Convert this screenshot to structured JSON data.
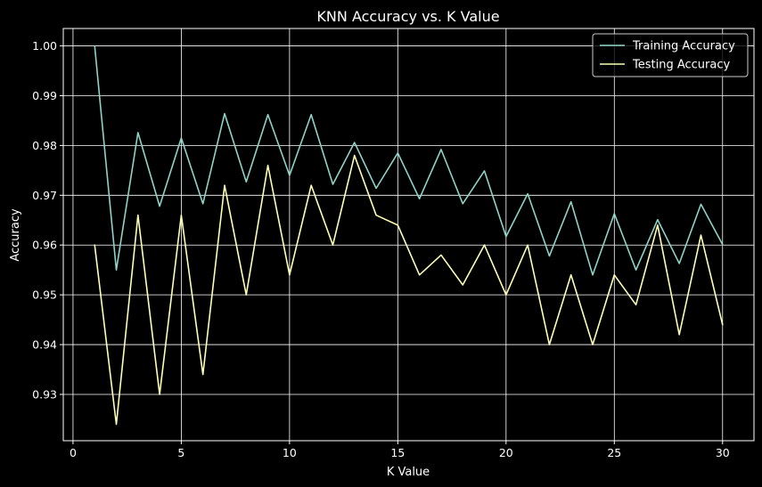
{
  "chart_data": {
    "type": "line",
    "title": "KNN Accuracy vs. K Value",
    "xlabel": "K Value",
    "ylabel": "Accuracy",
    "xlim": [
      -0.45,
      31.45
    ],
    "ylim": [
      0.9207,
      1.0035
    ],
    "xticks": [
      0,
      5,
      10,
      15,
      20,
      25,
      30
    ],
    "yticks": [
      0.93,
      0.94,
      0.95,
      0.96,
      0.97,
      0.98,
      0.99,
      1.0
    ],
    "xtick_labels": [
      "0",
      "5",
      "10",
      "15",
      "20",
      "25",
      "30"
    ],
    "ytick_labels": [
      "0.93",
      "0.94",
      "0.95",
      "0.96",
      "0.97",
      "0.98",
      "0.99",
      "1.00"
    ],
    "grid": true,
    "legend_position": "top-right",
    "x": [
      1,
      2,
      3,
      4,
      5,
      6,
      7,
      8,
      9,
      10,
      11,
      12,
      13,
      14,
      15,
      16,
      17,
      18,
      19,
      20,
      21,
      22,
      23,
      24,
      25,
      26,
      27,
      28,
      29,
      30
    ],
    "series": [
      {
        "name": "Training Accuracy",
        "color": "#8dd3c7",
        "values": [
          1.0,
          0.955,
          0.9826,
          0.9678,
          0.9815,
          0.9683,
          0.9864,
          0.9727,
          0.9862,
          0.974,
          0.9862,
          0.9722,
          0.9806,
          0.9714,
          0.9785,
          0.9693,
          0.9792,
          0.9683,
          0.9749,
          0.9617,
          0.9703,
          0.9578,
          0.9687,
          0.954,
          0.9663,
          0.955,
          0.9651,
          0.9563,
          0.9682,
          0.9601
        ]
      },
      {
        "name": "Testing Accuracy",
        "color": "#feffb3",
        "values": [
          0.96,
          0.924,
          0.966,
          0.93,
          0.966,
          0.934,
          0.972,
          0.95,
          0.976,
          0.954,
          0.972,
          0.96,
          0.978,
          0.966,
          0.964,
          0.954,
          0.958,
          0.952,
          0.96,
          0.95,
          0.96,
          0.94,
          0.954,
          0.94,
          0.954,
          0.948,
          0.964,
          0.942,
          0.962,
          0.944
        ]
      }
    ]
  }
}
